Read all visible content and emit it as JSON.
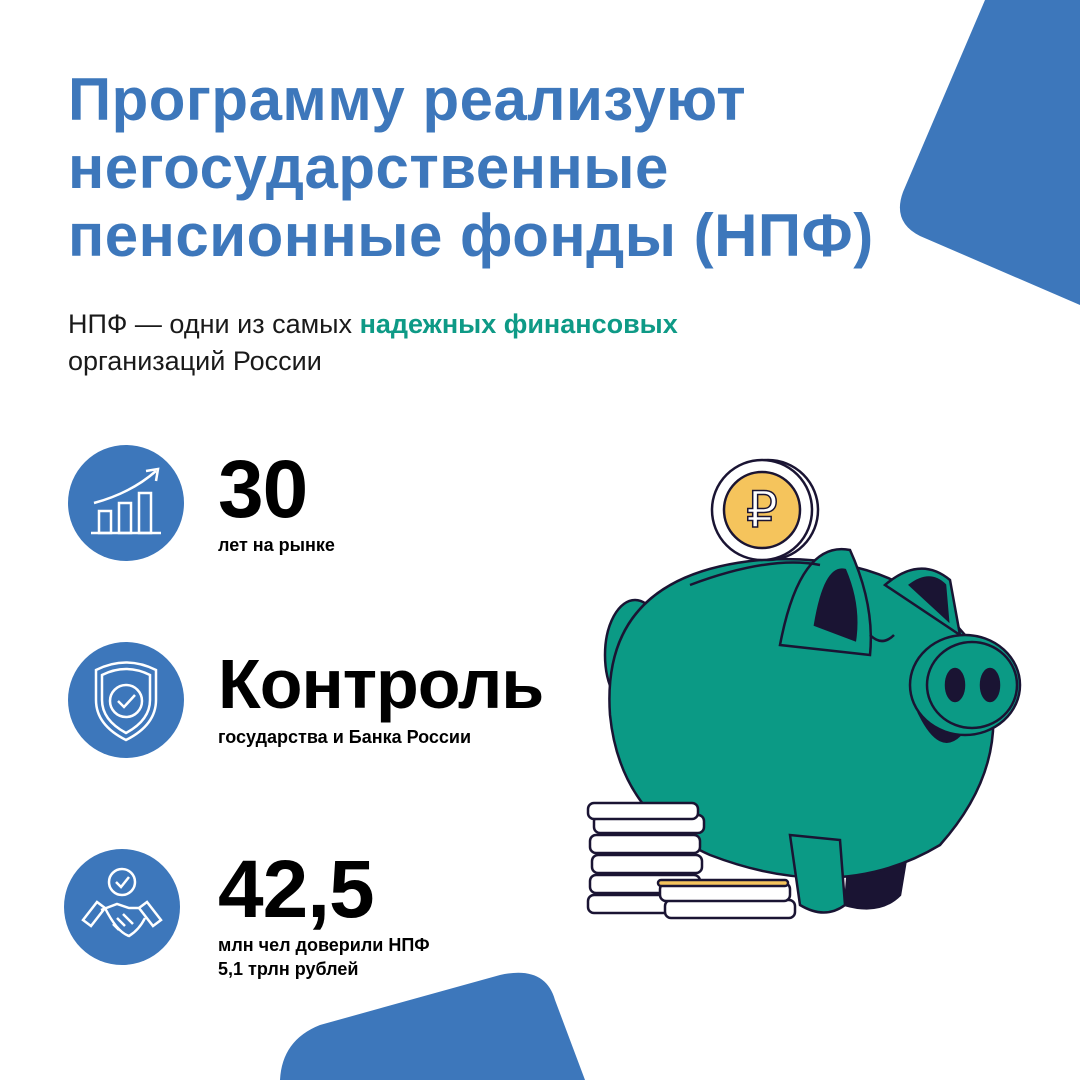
{
  "colors": {
    "accent_blue": "#3d77bb",
    "accent_green": "#0e9a86",
    "piggy_green": "#0b9a85",
    "dark": "#1a1433",
    "coin_gold": "#f5c45c"
  },
  "title": {
    "line1": "Программу реализуют",
    "line2": "негосударственные",
    "line3": "пенсионные фонды (НПФ)"
  },
  "subtitle": {
    "part1": "НПФ — одни из самых ",
    "highlight": "надежных финансовых",
    "part2": "организаций России"
  },
  "facts": [
    {
      "icon": "growth-chart-icon",
      "value": "30",
      "caption": "лет на рынке"
    },
    {
      "icon": "shield-check-icon",
      "value": "Контроль",
      "caption": "государства и Банка России"
    },
    {
      "icon": "handshake-icon",
      "value": "42,5",
      "caption": "млн чел доверили НПФ",
      "caption2": "5,1 трлн рублей"
    }
  ],
  "illustration": {
    "coin_symbol": "₽"
  }
}
